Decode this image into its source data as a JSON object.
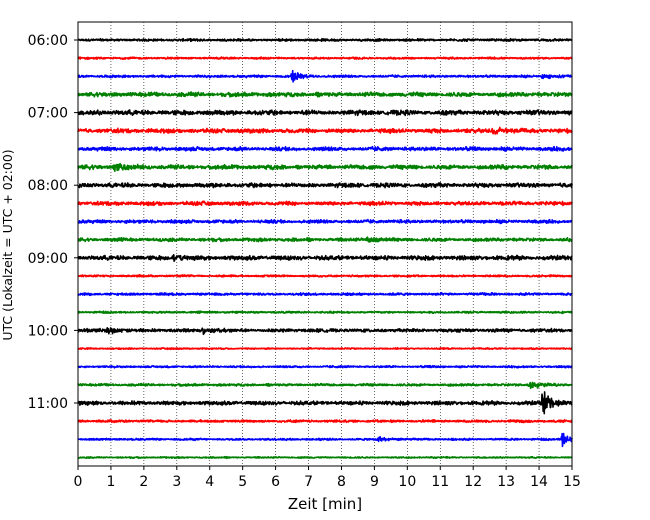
{
  "chart_data": {
    "type": "line",
    "subtype": "helicorder-seismogram",
    "xlabel": "Zeit  [min]",
    "ylabel": "UTC (Lokalzeit = UTC + 02:00)",
    "xlim": [
      0,
      15
    ],
    "x_ticks": [
      "0",
      "1",
      "2",
      "3",
      "4",
      "5",
      "6",
      "7",
      "8",
      "9",
      "10",
      "11",
      "12",
      "13",
      "14",
      "15"
    ],
    "y_tick_labels": [
      "06:00",
      "07:00",
      "08:00",
      "09:00",
      "10:00",
      "11:00"
    ],
    "grid": "vertical-dotted",
    "trace_colors": [
      "#000000",
      "#ff0000",
      "#0000ff",
      "#008000"
    ],
    "traces": [
      {
        "start": "06:00",
        "color": "#000000",
        "amplitude": 0.25,
        "events": []
      },
      {
        "start": "06:15",
        "color": "#ff0000",
        "amplitude": 0.2,
        "events": []
      },
      {
        "start": "06:30",
        "color": "#0000ff",
        "amplitude": 0.25,
        "events": [
          {
            "minute": 6.5,
            "amplitude": 1.0
          },
          {
            "minute": 14.1,
            "amplitude": 0.5
          }
        ]
      },
      {
        "start": "06:45",
        "color": "#008000",
        "amplitude": 0.45,
        "events": []
      },
      {
        "start": "07:00",
        "color": "#000000",
        "amplitude": 0.5,
        "events": []
      },
      {
        "start": "07:15",
        "color": "#ff0000",
        "amplitude": 0.45,
        "events": [
          {
            "minute": 12.6,
            "amplitude": 0.7
          }
        ]
      },
      {
        "start": "07:30",
        "color": "#0000ff",
        "amplitude": 0.4,
        "events": []
      },
      {
        "start": "07:45",
        "color": "#008000",
        "amplitude": 0.45,
        "events": [
          {
            "minute": 1.1,
            "amplitude": 0.6
          }
        ]
      },
      {
        "start": "08:00",
        "color": "#000000",
        "amplitude": 0.45,
        "events": []
      },
      {
        "start": "08:15",
        "color": "#ff0000",
        "amplitude": 0.4,
        "events": []
      },
      {
        "start": "08:30",
        "color": "#0000ff",
        "amplitude": 0.35,
        "events": []
      },
      {
        "start": "08:45",
        "color": "#008000",
        "amplitude": 0.35,
        "events": [
          {
            "minute": 8.8,
            "amplitude": 0.55
          }
        ]
      },
      {
        "start": "09:00",
        "color": "#000000",
        "amplitude": 0.45,
        "events": [
          {
            "minute": 2.9,
            "amplitude": 0.5
          }
        ]
      },
      {
        "start": "09:15",
        "color": "#ff0000",
        "amplitude": 0.2,
        "events": []
      },
      {
        "start": "09:30",
        "color": "#0000ff",
        "amplitude": 0.25,
        "events": []
      },
      {
        "start": "09:45",
        "color": "#008000",
        "amplitude": 0.2,
        "events": []
      },
      {
        "start": "10:00",
        "color": "#000000",
        "amplitude": 0.35,
        "events": [
          {
            "minute": 0.9,
            "amplitude": 0.55
          },
          {
            "minute": 3.8,
            "amplitude": 0.5
          }
        ]
      },
      {
        "start": "10:15",
        "color": "#ff0000",
        "amplitude": 0.15,
        "events": []
      },
      {
        "start": "10:30",
        "color": "#0000ff",
        "amplitude": 0.2,
        "events": []
      },
      {
        "start": "10:45",
        "color": "#008000",
        "amplitude": 0.25,
        "events": [
          {
            "minute": 13.7,
            "amplitude": 0.8
          }
        ]
      },
      {
        "start": "11:00",
        "color": "#000000",
        "amplitude": 0.4,
        "events": [
          {
            "minute": 14.1,
            "amplitude": 2.2
          }
        ]
      },
      {
        "start": "11:15",
        "color": "#ff0000",
        "amplitude": 0.25,
        "events": []
      },
      {
        "start": "11:30",
        "color": "#0000ff",
        "amplitude": 0.2,
        "events": [
          {
            "minute": 9.1,
            "amplitude": 0.6
          },
          {
            "minute": 14.7,
            "amplitude": 1.2
          }
        ]
      },
      {
        "start": "11:45",
        "color": "#008000",
        "amplitude": 0.15,
        "events": []
      }
    ]
  }
}
